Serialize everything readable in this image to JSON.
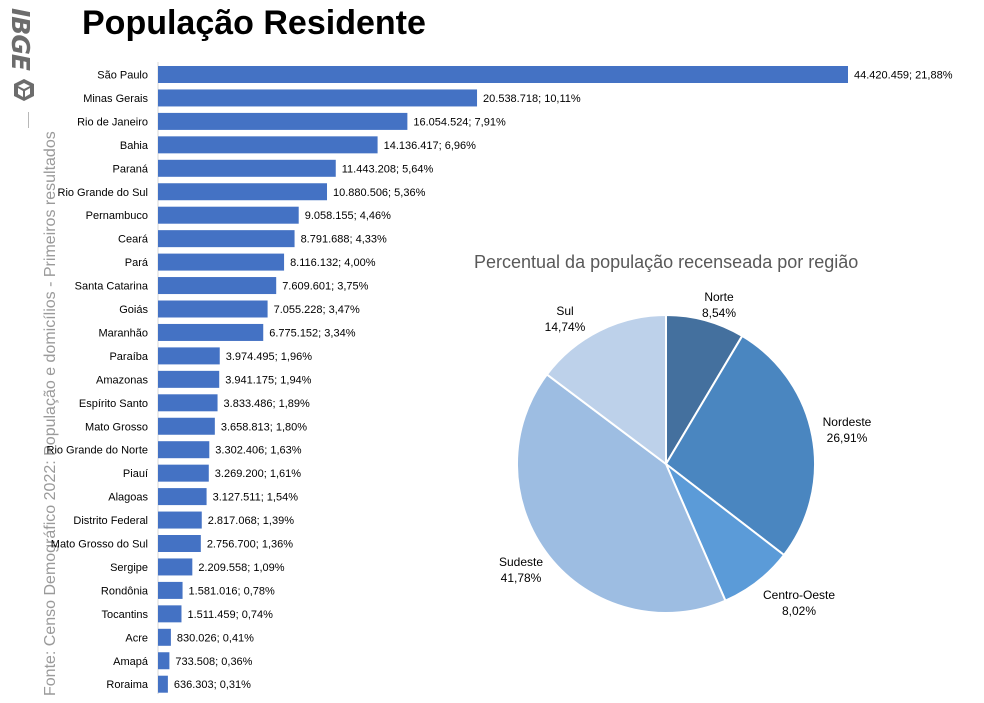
{
  "title": "População Residente",
  "source": "Fonte: Censo Demográfico 2022: População e domicílios - Primeiros resultados",
  "logo": {
    "text": "IBGE",
    "icon": "ibge-cube-icon"
  },
  "colors": {
    "bar": "#4472c4",
    "text": "#000000"
  },
  "chart_data": [
    {
      "type": "bar",
      "orientation": "horizontal",
      "categories": [
        "São Paulo",
        "Minas Gerais",
        "Rio de Janeiro",
        "Bahia",
        "Paraná",
        "Rio Grande do Sul",
        "Pernambuco",
        "Ceará",
        "Pará",
        "Santa Catarina",
        "Goiás",
        "Maranhão",
        "Paraíba",
        "Amazonas",
        "Espírito Santo",
        "Mato Grosso",
        "Rio Grande do Norte",
        "Piauí",
        "Alagoas",
        "Distrito Federal",
        "Mato Grosso do Sul",
        "Sergipe",
        "Rondônia",
        "Tocantins",
        "Acre",
        "Amapá",
        "Roraima"
      ],
      "values": [
        44420459,
        20538718,
        16054524,
        14136417,
        11443208,
        10880506,
        9058155,
        8791688,
        8116132,
        7609601,
        7055228,
        6775152,
        3974495,
        3941175,
        3833486,
        3658813,
        3302406,
        3269200,
        3127511,
        2817068,
        2756700,
        2209558,
        1581016,
        1511459,
        830026,
        733508,
        636303
      ],
      "data_labels": [
        "44.420.459; 21,88%",
        "20.538.718; 10,11%",
        "16.054.524; 7,91%",
        "14.136.417; 6,96%",
        "11.443.208; 5,64%",
        "10.880.506; 5,36%",
        "9.058.155; 4,46%",
        "8.791.688; 4,33%",
        "8.116.132; 4,00%",
        "7.609.601; 3,75%",
        "7.055.228; 3,47%",
        "6.775.152; 3,34%",
        "3.974.495; 1,96%",
        "3.941.175; 1,94%",
        "3.833.486; 1,89%",
        "3.658.813; 1,80%",
        "3.302.406; 1,63%",
        "3.269.200; 1,61%",
        "3.127.511; 1,54%",
        "2.817.068; 1,39%",
        "2.756.700; 1,36%",
        "2.209.558; 1,09%",
        "1.581.016; 0,78%",
        "1.511.459; 0,74%",
        "830.026; 0,41%",
        "733.508; 0,36%",
        "636.303; 0,31%"
      ],
      "grid": false
    },
    {
      "type": "pie",
      "title": "Percentual da população recenseada por região",
      "slices": [
        {
          "label": "Norte",
          "value": 8.54,
          "display": "8,54%",
          "color": "#44709e"
        },
        {
          "label": "Nordeste",
          "value": 26.91,
          "display": "26,91%",
          "color": "#4a86c0"
        },
        {
          "label": "Centro-Oeste",
          "value": 8.02,
          "display": "8,02%",
          "color": "#5b9bd8"
        },
        {
          "label": "Sudeste",
          "value": 41.78,
          "display": "41,78%",
          "color": "#9dbde2"
        },
        {
          "label": "Sul",
          "value": 14.74,
          "display": "14,74%",
          "color": "#bdd1ea"
        }
      ]
    }
  ]
}
